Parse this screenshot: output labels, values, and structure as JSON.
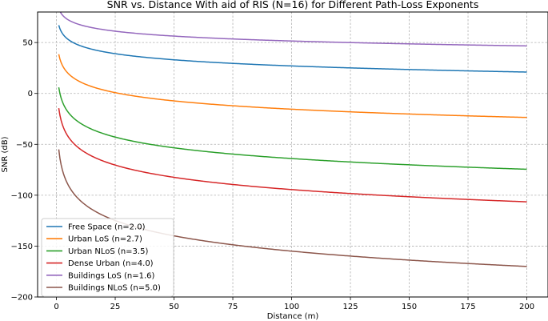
{
  "chart_data": {
    "type": "line",
    "title": "SNR vs. Distance With aid of RIS (N=16) for Different Path-Loss Exponents",
    "xlabel": "Distance (m)",
    "ylabel": "SNR (dB)",
    "xlim": [
      -8,
      209
    ],
    "ylim": [
      -200,
      80
    ],
    "xticks": [
      0,
      25,
      50,
      75,
      100,
      125,
      150,
      175,
      200
    ],
    "yticks": [
      -200,
      -150,
      -100,
      -50,
      0,
      50
    ],
    "ytick_labels": [
      "−200",
      "−150",
      "−100",
      "−50",
      "0",
      "50"
    ],
    "grid": true,
    "legend_position": "lower-left",
    "x_range": [
      1,
      200
    ],
    "series": [
      {
        "name": "Free Space (n=2.0)",
        "color": "#1f77b4",
        "value_at_1": 67.0,
        "value_at_200": 21.0
      },
      {
        "name": "Urban LoS (n=2.7)",
        "color": "#ff7f0e",
        "value_at_1": 38.5,
        "value_at_200": -23.6
      },
      {
        "name": "Urban NLoS (n=3.5)",
        "color": "#2ca02c",
        "value_at_1": 6.0,
        "value_at_200": -74.5
      },
      {
        "name": "Dense Urban (n=4.0)",
        "color": "#d62728",
        "value_at_1": -14.5,
        "value_at_200": -106.5
      },
      {
        "name": "Buildings LoS (n=1.6)",
        "color": "#9467bd",
        "value_at_1": 83.5,
        "value_at_200": 46.7
      },
      {
        "name": "Buildings NLoS (n=5.0)",
        "color": "#8c564b",
        "value_at_1": -55.0,
        "value_at_200": -170.0
      }
    ]
  }
}
